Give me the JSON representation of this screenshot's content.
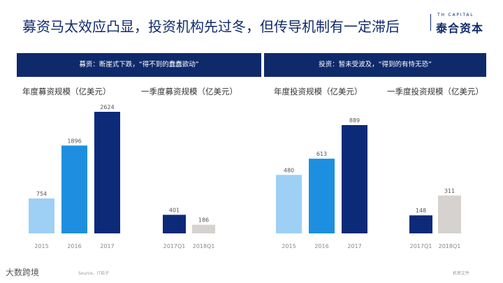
{
  "slide": {
    "title": "募资马太效应凸显，投资机构先过冬，但传导机制有一定滞后"
  },
  "logo": {
    "en": "TH CAPITAL",
    "cn": "泰合资本"
  },
  "panels": {
    "left_banner": "募资：断崖式下跌，“得不到的蠢蠢欲动”",
    "right_banner": "投资：暂未受波及，“得到的有恃无恐”"
  },
  "footer": {
    "logo_text": "大数跨境",
    "source": "Source，IT桔子",
    "confidential": "机密文件"
  },
  "chart_data": [
    {
      "type": "bar",
      "title": "年度募资规模（亿美元）",
      "categories": [
        "2015",
        "2016",
        "2017"
      ],
      "values": [
        754,
        1896,
        2624
      ],
      "colors": [
        "#9ed0f5",
        "#1e8fe0",
        "#0d2a78"
      ]
    },
    {
      "type": "bar",
      "title": "一季度募资规模（亿美元）",
      "categories": [
        "2017Q1",
        "2018Q1"
      ],
      "values": [
        401,
        186
      ],
      "colors": [
        "#0d2a78",
        "#d5d2cf"
      ]
    },
    {
      "type": "bar",
      "title": "年度投资规模（亿美元）",
      "categories": [
        "2015",
        "2016",
        "2017"
      ],
      "values": [
        480,
        613,
        889
      ],
      "colors": [
        "#9ed0f5",
        "#1e8fe0",
        "#0d2a78"
      ]
    },
    {
      "type": "bar",
      "title": "一季度投资规模（亿美元）",
      "categories": [
        "2017Q1",
        "2018Q1"
      ],
      "values": [
        148,
        311
      ],
      "colors": [
        "#0d2a78",
        "#d5d2cf"
      ]
    }
  ]
}
